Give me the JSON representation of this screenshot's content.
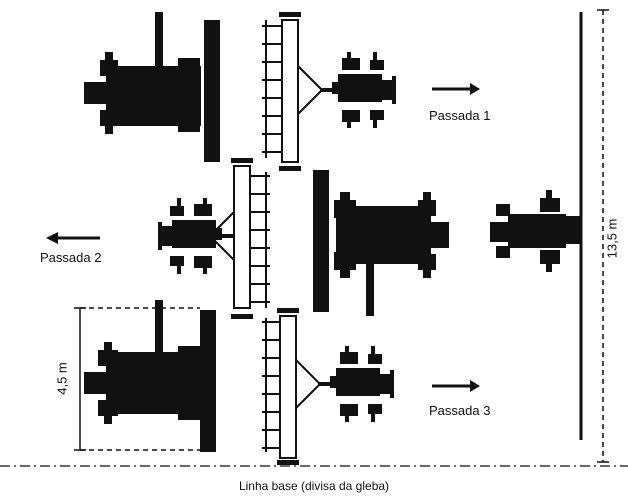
{
  "labels": {
    "pass1": "Passada 1",
    "pass2": "Passada 2",
    "pass3": "Passada 3",
    "width_dim": "4,5 m",
    "total_dim": "13,5 m",
    "baseline": "Linha base (divisa da gleba)"
  },
  "colors": {
    "ink": "#111111",
    "implement_fill": "#ffffff",
    "background": "#ffffff"
  },
  "icons": [
    "tractor-icon",
    "seeder-implement-icon",
    "arrow-icon"
  ]
}
